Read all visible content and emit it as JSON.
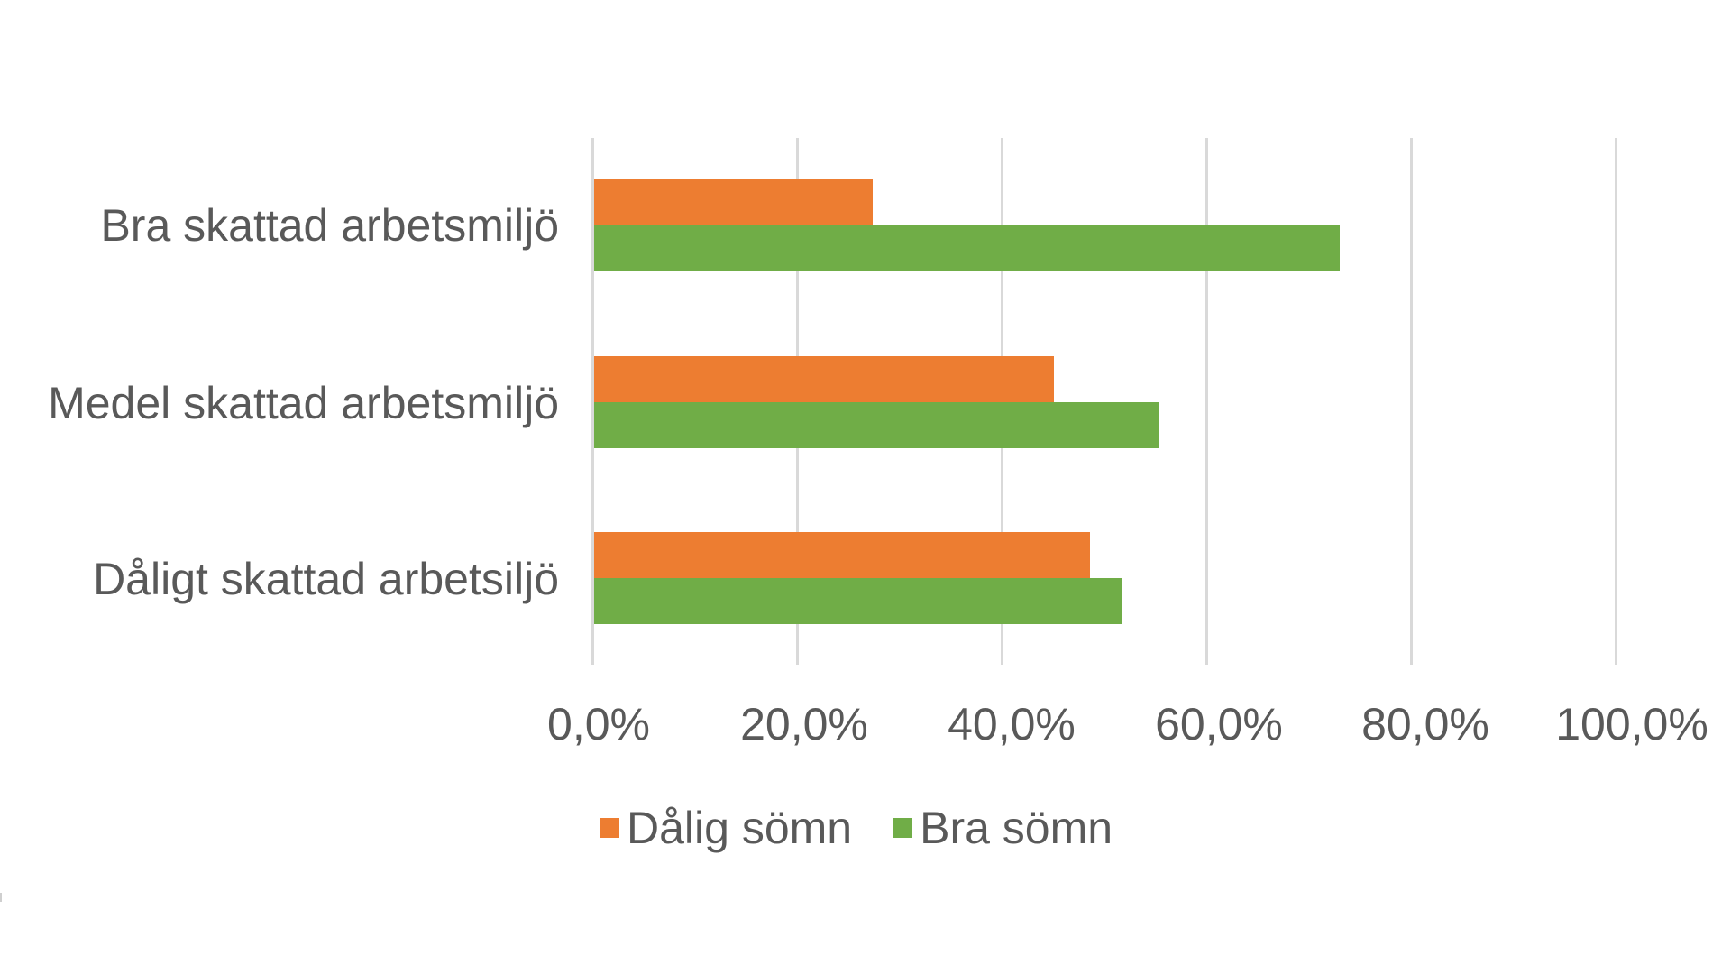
{
  "chart_data": {
    "type": "bar",
    "orientation": "horizontal",
    "title": "",
    "xlabel": "",
    "ylabel": "",
    "categories": [
      "Bra skattad arbetsmiljö",
      "Medel skattad arbetsmiljö",
      "Dåligt skattad arbetsiljö"
    ],
    "series": [
      {
        "name": "Dålig sömn",
        "color": "#ED7D31",
        "values": [
          27.2,
          44.9,
          48.5
        ]
      },
      {
        "name": "Bra sömn",
        "color": "#70AD47",
        "values": [
          72.9,
          55.2,
          51.5
        ]
      }
    ],
    "xlim": [
      0,
      100
    ],
    "x_ticks": [
      "0,0%",
      "20,0%",
      "40,0%",
      "60,0%",
      "80,0%",
      "100,0%"
    ],
    "grid": "vertical",
    "legend_position": "bottom"
  },
  "labels": {
    "cat0": "Bra skattad arbetsmiljö",
    "cat1": "Medel skattad arbetsmiljö",
    "cat2": "Dåligt skattad arbetsiljö",
    "tick0": "0,0%",
    "tick1": "20,0%",
    "tick2": "40,0%",
    "tick3": "60,0%",
    "tick4": "80,0%",
    "tick5": "100,0%",
    "legend0": "Dålig sömn",
    "legend1": "Bra sömn"
  },
  "colors": {
    "dalig_somn": "#ED7D31",
    "bra_somn": "#70AD47",
    "gridline": "#D9D9D9",
    "text": "#595959"
  }
}
